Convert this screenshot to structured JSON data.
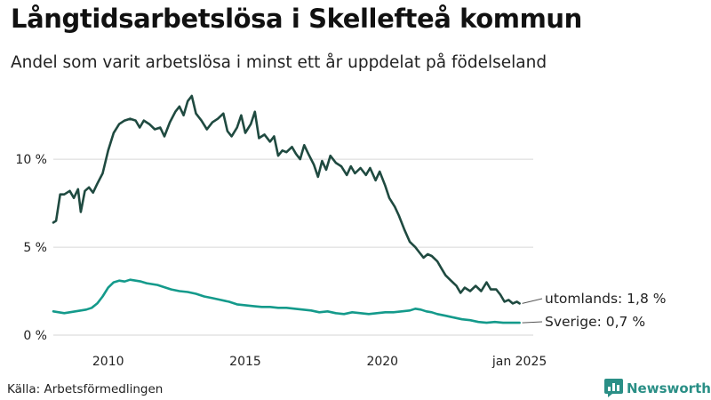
{
  "header": {
    "title": "Långtidsarbetslösa i Skellefteå kommun",
    "subtitle": "Andel som varit arbetslösa i minst ett år uppdelat på födelseland"
  },
  "footer": {
    "source": "Källa: Arbetsförmedlingen",
    "brand": "Newsworthy"
  },
  "colors": {
    "utomlands": "#1f4a40",
    "sverige": "#149a8b",
    "grid": "#d6d6d6",
    "brand": "#2a8f86"
  },
  "chart_data": {
    "type": "line",
    "title": "",
    "xlabel": "",
    "ylabel": "",
    "xlim": [
      2008,
      2025.5
    ],
    "ylim": [
      0,
      14
    ],
    "grid": "horizontal",
    "legend": "none (direct end labels)",
    "x_ticks": [
      {
        "value": 2010,
        "label": "2010"
      },
      {
        "value": 2015,
        "label": "2015"
      },
      {
        "value": 2020,
        "label": "2020"
      },
      {
        "value": 2025,
        "label": "jan 2025"
      }
    ],
    "y_ticks": [
      {
        "value": 0,
        "label": "0 %"
      },
      {
        "value": 5,
        "label": "5 %"
      },
      {
        "value": 10,
        "label": "10 %"
      }
    ],
    "series": [
      {
        "name": "utomlands",
        "end_label": "utomlands: 1,8 %",
        "points": [
          [
            2008.0,
            6.4
          ],
          [
            2008.1,
            6.5
          ],
          [
            2008.25,
            8.0
          ],
          [
            2008.4,
            8.0
          ],
          [
            2008.6,
            8.2
          ],
          [
            2008.75,
            7.8
          ],
          [
            2008.9,
            8.3
          ],
          [
            2009.0,
            7.0
          ],
          [
            2009.15,
            8.2
          ],
          [
            2009.3,
            8.4
          ],
          [
            2009.45,
            8.1
          ],
          [
            2009.6,
            8.6
          ],
          [
            2009.8,
            9.2
          ],
          [
            2010.0,
            10.5
          ],
          [
            2010.2,
            11.5
          ],
          [
            2010.4,
            12.0
          ],
          [
            2010.6,
            12.2
          ],
          [
            2010.8,
            12.3
          ],
          [
            2011.0,
            12.2
          ],
          [
            2011.15,
            11.8
          ],
          [
            2011.3,
            12.2
          ],
          [
            2011.5,
            12.0
          ],
          [
            2011.7,
            11.7
          ],
          [
            2011.9,
            11.8
          ],
          [
            2012.05,
            11.3
          ],
          [
            2012.25,
            12.1
          ],
          [
            2012.45,
            12.7
          ],
          [
            2012.6,
            13.0
          ],
          [
            2012.75,
            12.5
          ],
          [
            2012.9,
            13.3
          ],
          [
            2013.05,
            13.6
          ],
          [
            2013.2,
            12.6
          ],
          [
            2013.4,
            12.2
          ],
          [
            2013.6,
            11.7
          ],
          [
            2013.8,
            12.1
          ],
          [
            2014.0,
            12.3
          ],
          [
            2014.2,
            12.6
          ],
          [
            2014.35,
            11.6
          ],
          [
            2014.5,
            11.3
          ],
          [
            2014.7,
            11.8
          ],
          [
            2014.85,
            12.5
          ],
          [
            2015.0,
            11.5
          ],
          [
            2015.2,
            12.0
          ],
          [
            2015.35,
            12.7
          ],
          [
            2015.5,
            11.2
          ],
          [
            2015.7,
            11.4
          ],
          [
            2015.9,
            11.0
          ],
          [
            2016.05,
            11.3
          ],
          [
            2016.2,
            10.2
          ],
          [
            2016.35,
            10.5
          ],
          [
            2016.5,
            10.4
          ],
          [
            2016.7,
            10.7
          ],
          [
            2016.85,
            10.3
          ],
          [
            2017.0,
            10.0
          ],
          [
            2017.15,
            10.8
          ],
          [
            2017.3,
            10.3
          ],
          [
            2017.5,
            9.7
          ],
          [
            2017.65,
            9.0
          ],
          [
            2017.8,
            9.9
          ],
          [
            2017.95,
            9.4
          ],
          [
            2018.1,
            10.2
          ],
          [
            2018.3,
            9.8
          ],
          [
            2018.5,
            9.6
          ],
          [
            2018.7,
            9.1
          ],
          [
            2018.85,
            9.6
          ],
          [
            2019.0,
            9.2
          ],
          [
            2019.2,
            9.5
          ],
          [
            2019.4,
            9.1
          ],
          [
            2019.55,
            9.5
          ],
          [
            2019.75,
            8.8
          ],
          [
            2019.9,
            9.3
          ],
          [
            2020.1,
            8.5
          ],
          [
            2020.25,
            7.8
          ],
          [
            2020.45,
            7.3
          ],
          [
            2020.6,
            6.8
          ],
          [
            2020.8,
            6.0
          ],
          [
            2021.0,
            5.3
          ],
          [
            2021.2,
            5.0
          ],
          [
            2021.35,
            4.7
          ],
          [
            2021.5,
            4.4
          ],
          [
            2021.65,
            4.6
          ],
          [
            2021.8,
            4.5
          ],
          [
            2022.0,
            4.2
          ],
          [
            2022.15,
            3.8
          ],
          [
            2022.3,
            3.4
          ],
          [
            2022.5,
            3.1
          ],
          [
            2022.7,
            2.8
          ],
          [
            2022.85,
            2.4
          ],
          [
            2023.0,
            2.7
          ],
          [
            2023.2,
            2.5
          ],
          [
            2023.4,
            2.8
          ],
          [
            2023.6,
            2.5
          ],
          [
            2023.8,
            3.0
          ],
          [
            2023.95,
            2.6
          ],
          [
            2024.15,
            2.6
          ],
          [
            2024.3,
            2.3
          ],
          [
            2024.45,
            1.9
          ],
          [
            2024.6,
            2.0
          ],
          [
            2024.75,
            1.8
          ],
          [
            2024.9,
            1.9
          ],
          [
            2025.0,
            1.8
          ]
        ]
      },
      {
        "name": "Sverige",
        "end_label": "Sverige: 0,7 %",
        "points": [
          [
            2008.0,
            1.35
          ],
          [
            2008.2,
            1.3
          ],
          [
            2008.4,
            1.25
          ],
          [
            2008.6,
            1.3
          ],
          [
            2008.8,
            1.35
          ],
          [
            2009.0,
            1.4
          ],
          [
            2009.2,
            1.45
          ],
          [
            2009.4,
            1.55
          ],
          [
            2009.6,
            1.8
          ],
          [
            2009.8,
            2.2
          ],
          [
            2010.0,
            2.7
          ],
          [
            2010.2,
            3.0
          ],
          [
            2010.4,
            3.1
          ],
          [
            2010.6,
            3.05
          ],
          [
            2010.8,
            3.15
          ],
          [
            2011.0,
            3.1
          ],
          [
            2011.2,
            3.05
          ],
          [
            2011.4,
            2.95
          ],
          [
            2011.6,
            2.9
          ],
          [
            2011.8,
            2.85
          ],
          [
            2012.0,
            2.75
          ],
          [
            2012.3,
            2.6
          ],
          [
            2012.6,
            2.5
          ],
          [
            2012.9,
            2.45
          ],
          [
            2013.2,
            2.35
          ],
          [
            2013.5,
            2.2
          ],
          [
            2013.8,
            2.1
          ],
          [
            2014.1,
            2.0
          ],
          [
            2014.4,
            1.9
          ],
          [
            2014.7,
            1.75
          ],
          [
            2015.0,
            1.7
          ],
          [
            2015.3,
            1.65
          ],
          [
            2015.6,
            1.6
          ],
          [
            2015.9,
            1.6
          ],
          [
            2016.2,
            1.55
          ],
          [
            2016.5,
            1.55
          ],
          [
            2016.8,
            1.5
          ],
          [
            2017.1,
            1.45
          ],
          [
            2017.4,
            1.4
          ],
          [
            2017.7,
            1.3
          ],
          [
            2018.0,
            1.35
          ],
          [
            2018.3,
            1.25
          ],
          [
            2018.6,
            1.2
          ],
          [
            2018.9,
            1.3
          ],
          [
            2019.2,
            1.25
          ],
          [
            2019.5,
            1.2
          ],
          [
            2019.8,
            1.25
          ],
          [
            2020.1,
            1.3
          ],
          [
            2020.4,
            1.3
          ],
          [
            2020.7,
            1.35
          ],
          [
            2021.0,
            1.4
          ],
          [
            2021.2,
            1.5
          ],
          [
            2021.4,
            1.45
          ],
          [
            2021.6,
            1.35
          ],
          [
            2021.8,
            1.3
          ],
          [
            2022.0,
            1.2
          ],
          [
            2022.3,
            1.1
          ],
          [
            2022.6,
            1.0
          ],
          [
            2022.9,
            0.9
          ],
          [
            2023.2,
            0.85
          ],
          [
            2023.5,
            0.75
          ],
          [
            2023.8,
            0.7
          ],
          [
            2024.1,
            0.75
          ],
          [
            2024.4,
            0.7
          ],
          [
            2024.7,
            0.7
          ],
          [
            2025.0,
            0.7
          ]
        ]
      }
    ]
  }
}
